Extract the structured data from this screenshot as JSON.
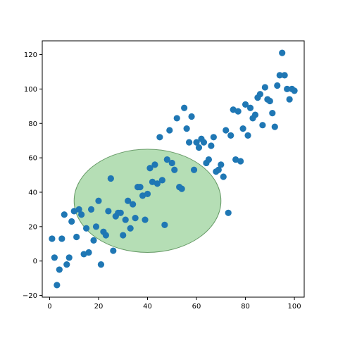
{
  "chart_data": {
    "type": "scatter",
    "title": "",
    "xlabel": "",
    "ylabel": "",
    "xlim": [
      -3,
      104
    ],
    "ylim": [
      -21,
      128
    ],
    "grid": false,
    "x_ticks": [
      0,
      20,
      40,
      60,
      80,
      100
    ],
    "y_ticks": [
      -20,
      0,
      20,
      40,
      60,
      80,
      100,
      120
    ],
    "colors": {
      "points": "#1f77b4",
      "ellipse_fill": "#2ca02c",
      "ellipse_alpha": 0.35,
      "ellipse_edge": "#1e641e"
    },
    "ellipse": {
      "cx": 40,
      "cy": 35,
      "rx": 30,
      "ry": 30
    },
    "series": [
      {
        "points": [
          [
            1,
            13
          ],
          [
            2,
            2
          ],
          [
            3,
            -14
          ],
          [
            4,
            -5
          ],
          [
            5,
            13
          ],
          [
            6,
            27
          ],
          [
            7,
            -2
          ],
          [
            8,
            2
          ],
          [
            9,
            23
          ],
          [
            10,
            29
          ],
          [
            11,
            14
          ],
          [
            12,
            30
          ],
          [
            13,
            27
          ],
          [
            14,
            4
          ],
          [
            15,
            19
          ],
          [
            16,
            5
          ],
          [
            17,
            30
          ],
          [
            18,
            12
          ],
          [
            19,
            20
          ],
          [
            20,
            35
          ],
          [
            21,
            -2
          ],
          [
            22,
            17
          ],
          [
            23,
            15
          ],
          [
            24,
            29
          ],
          [
            25,
            48
          ],
          [
            26,
            6
          ],
          [
            27,
            26
          ],
          [
            28,
            28
          ],
          [
            29,
            28
          ],
          [
            30,
            15
          ],
          [
            31,
            24
          ],
          [
            32,
            35
          ],
          [
            33,
            19
          ],
          [
            34,
            33
          ],
          [
            35,
            25
          ],
          [
            36,
            43
          ],
          [
            37,
            43
          ],
          [
            38,
            38
          ],
          [
            39,
            24
          ],
          [
            40,
            39
          ],
          [
            41,
            54
          ],
          [
            42,
            46
          ],
          [
            43,
            56
          ],
          [
            44,
            45
          ],
          [
            45,
            72
          ],
          [
            46,
            47
          ],
          [
            47,
            21
          ],
          [
            48,
            59
          ],
          [
            49,
            76
          ],
          [
            50,
            57
          ],
          [
            51,
            53
          ],
          [
            52,
            83
          ],
          [
            53,
            43
          ],
          [
            54,
            42
          ],
          [
            55,
            89
          ],
          [
            56,
            77
          ],
          [
            57,
            69
          ],
          [
            58,
            84
          ],
          [
            59,
            53
          ],
          [
            60,
            69
          ],
          [
            61,
            66
          ],
          [
            62,
            71
          ],
          [
            63,
            69
          ],
          [
            64,
            57
          ],
          [
            65,
            59
          ],
          [
            66,
            67
          ],
          [
            67,
            72
          ],
          [
            68,
            52
          ],
          [
            69,
            53
          ],
          [
            70,
            56
          ],
          [
            71,
            49
          ],
          [
            72,
            76
          ],
          [
            73,
            28
          ],
          [
            74,
            73
          ],
          [
            75,
            88
          ],
          [
            76,
            59
          ],
          [
            77,
            87
          ],
          [
            78,
            58
          ],
          [
            79,
            77
          ],
          [
            80,
            91
          ],
          [
            81,
            73
          ],
          [
            82,
            89
          ],
          [
            83,
            83
          ],
          [
            84,
            85
          ],
          [
            85,
            95
          ],
          [
            86,
            97
          ],
          [
            87,
            79
          ],
          [
            88,
            101
          ],
          [
            89,
            94
          ],
          [
            90,
            93
          ],
          [
            91,
            86
          ],
          [
            92,
            78
          ],
          [
            93,
            102
          ],
          [
            94,
            108
          ],
          [
            95,
            121
          ],
          [
            96,
            108
          ],
          [
            97,
            100
          ],
          [
            98,
            94
          ],
          [
            99,
            100
          ],
          [
            100,
            99
          ]
        ]
      }
    ]
  }
}
